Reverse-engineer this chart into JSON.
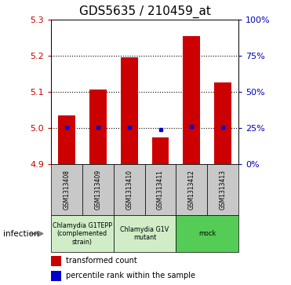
{
  "title": "GDS5635 / 210459_at",
  "samples": [
    "GSM1313408",
    "GSM1313409",
    "GSM1313410",
    "GSM1313411",
    "GSM1313412",
    "GSM1313413"
  ],
  "bar_values": [
    5.035,
    5.107,
    5.196,
    4.974,
    5.256,
    5.127
  ],
  "blue_values": [
    5.001,
    5.003,
    5.002,
    4.996,
    5.005,
    5.002
  ],
  "bar_base": 4.9,
  "ylim": [
    4.9,
    5.3
  ],
  "yticks_left": [
    4.9,
    5.0,
    5.1,
    5.2,
    5.3
  ],
  "yticks_right": [
    0,
    25,
    50,
    75,
    100
  ],
  "ytick_labels_right": [
    "0%",
    "25%",
    "50%",
    "75%",
    "100%"
  ],
  "bar_color": "#cc0000",
  "blue_color": "#0000cc",
  "axis_label_color_left": "#cc0000",
  "axis_label_color_right": "#0000bb",
  "infection_label": "infection",
  "legend_bar_label": "transformed count",
  "legend_blue_label": "percentile rank within the sample",
  "title_fontsize": 11,
  "groups": [
    {
      "label": "Chlamydia G1TEPP\n(complemented\nstrain)",
      "start": 0,
      "end": 2,
      "color": "#d0edc8"
    },
    {
      "label": "Chlamydia G1V\nmutant",
      "start": 2,
      "end": 4,
      "color": "#d0edc8"
    },
    {
      "label": "mock",
      "start": 4,
      "end": 6,
      "color": "#55cc55"
    }
  ],
  "sample_box_color": "#c8c8c8",
  "grid_lines": [
    5.0,
    5.1,
    5.2
  ]
}
